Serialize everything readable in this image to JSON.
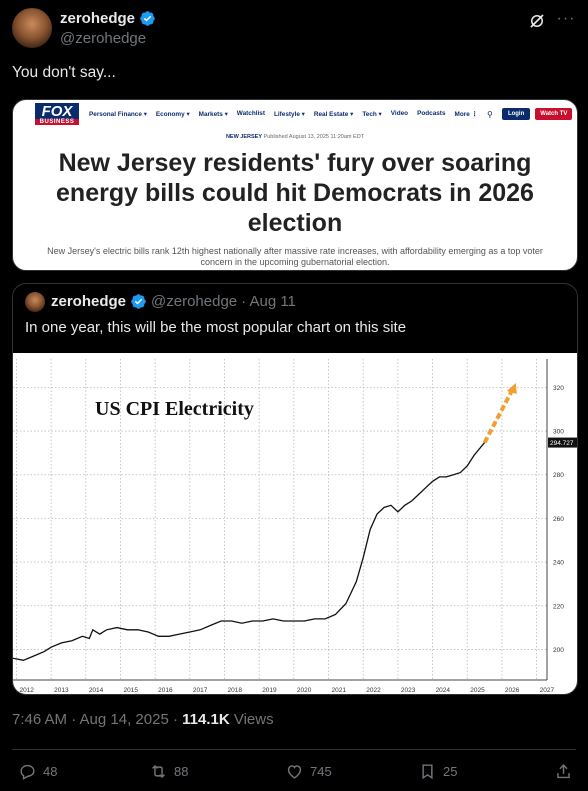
{
  "post": {
    "display_name": "zerohedge",
    "handle": "@zerohedge",
    "text": "You don't say...",
    "timestamp": "7:46 AM · Aug 14, 2025 · ",
    "views_count": "114.1K",
    "views_label": " Views",
    "actions": {
      "replies": "48",
      "reposts": "88",
      "likes": "745",
      "bookmarks": "25"
    }
  },
  "link_card": {
    "brand_line1": "FOX",
    "brand_line2": "BUSINESS",
    "nav": [
      "Personal Finance ▾",
      "Economy ▾",
      "Markets ▾",
      "Watchlist",
      "Lifestyle ▾",
      "Real Estate ▾",
      "Tech ▾",
      "Video",
      "Podcasts",
      "More ⋮"
    ],
    "login": "Login",
    "watch": "Watch TV",
    "section": "NEW JERSEY",
    "published": " Published August 13, 2025 11:20am EDT",
    "headline": "New Jersey residents' fury over soaring energy bills could hit Democrats in 2026 election",
    "subhead": "New Jersey's electric bills rank 12th highest nationally after massive rate increases, with affordability emerging as a top voter concern in the upcoming gubernatorial election."
  },
  "quoted": {
    "display_name": "zerohedge",
    "handle": "@zerohedge",
    "date": " · Aug 11",
    "text": "In one year, this will be the most popular chart on this site"
  },
  "colors": {
    "accent_blue": "#1d9bf0",
    "fox_navy": "#0a2c6e",
    "fox_red": "#c8102e",
    "projection_orange": "#f0a030"
  },
  "chart_data": {
    "type": "line",
    "title": "US CPI Electricity",
    "xlabel": "",
    "ylabel": "",
    "x_ticks": [
      "2012",
      "2013",
      "2014",
      "2015",
      "2016",
      "2017",
      "2018",
      "2019",
      "2020",
      "2021",
      "2022",
      "2023",
      "2024",
      "2025",
      "2026",
      "2027"
    ],
    "y_ticks": [
      200,
      220,
      240,
      260,
      280,
      300,
      320
    ],
    "xlim": [
      2011.9,
      2027.3
    ],
    "ylim": [
      186,
      333
    ],
    "last_value_label": "294.727",
    "series": [
      {
        "x": [
          2011.9,
          2012.2,
          2012.5,
          2012.8,
          2013.0,
          2013.3,
          2013.6,
          2013.9,
          2014.1,
          2014.2,
          2014.4,
          2014.6,
          2014.9,
          2015.2,
          2015.5,
          2015.8,
          2016.1,
          2016.4,
          2016.7,
          2017.0,
          2017.3,
          2017.6,
          2017.9,
          2018.2,
          2018.5,
          2018.8,
          2019.1,
          2019.4,
          2019.7,
          2020.0,
          2020.3,
          2020.6,
          2020.9,
          2021.2,
          2021.5,
          2021.8,
          2022.0,
          2022.2,
          2022.4,
          2022.6,
          2022.8,
          2023.0,
          2023.2,
          2023.4,
          2023.6,
          2023.8,
          2024.0,
          2024.2,
          2024.4,
          2024.6,
          2024.8,
          2025.0,
          2025.2,
          2025.5
        ],
        "values": [
          196,
          195,
          197,
          199,
          201,
          203,
          204,
          206,
          205,
          209,
          207,
          209,
          210,
          209,
          209,
          208,
          206,
          206,
          207,
          208,
          209,
          211,
          213,
          213,
          212,
          213,
          213,
          214,
          213,
          213,
          213,
          214,
          214,
          216,
          221,
          231,
          242,
          255,
          262,
          265,
          266,
          263,
          266,
          268,
          271,
          274,
          277,
          279,
          279,
          280,
          281,
          284,
          289,
          294.727
        ]
      },
      {
        "x": [
          2025.5,
          2026.4
        ],
        "values": [
          294.727,
          322
        ]
      }
    ]
  }
}
